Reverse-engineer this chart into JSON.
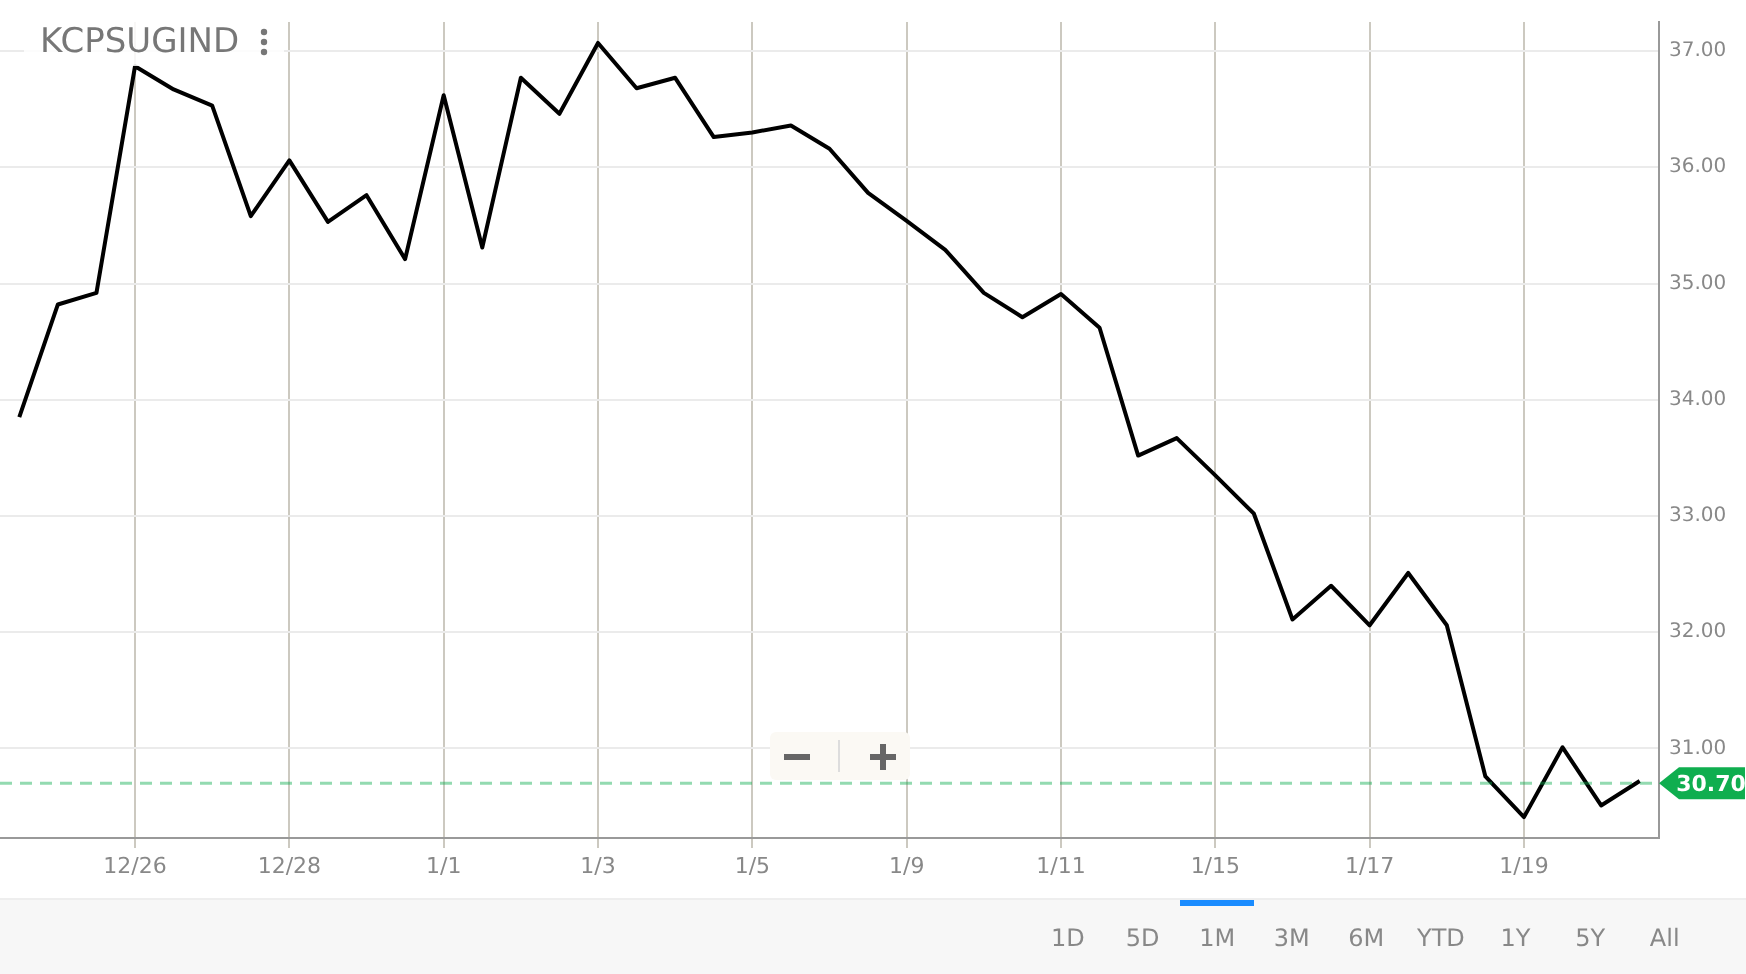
{
  "chart_data": {
    "type": "line",
    "title": "KCPSUGIND",
    "categories": [
      null,
      null,
      null,
      "12/26",
      null,
      null,
      null,
      "12/28",
      null,
      null,
      null,
      "1/1",
      null,
      null,
      null,
      "1/3",
      null,
      null,
      null,
      "1/5",
      null,
      null,
      null,
      "1/9",
      null,
      null,
      null,
      "1/11",
      null,
      null,
      null,
      "1/15",
      null,
      null,
      null,
      "1/17",
      null,
      null,
      null,
      "1/19",
      null,
      null,
      null
    ],
    "series": [
      {
        "color": "#000000",
        "values": [
          33.85,
          34.82,
          34.92,
          36.87,
          36.67,
          36.53,
          35.58,
          36.06,
          35.53,
          35.76,
          35.21,
          36.62,
          35.31,
          36.77,
          36.46,
          37.07,
          36.68,
          36.77,
          36.26,
          36.3,
          36.36,
          36.16,
          35.78,
          35.54,
          35.29,
          34.92,
          34.71,
          34.91,
          34.62,
          33.52,
          33.67,
          33.35,
          33.02,
          32.11,
          32.4,
          32.06,
          32.51,
          32.06,
          30.76,
          30.41,
          31.01,
          30.51,
          30.72
        ]
      }
    ],
    "ylim": [
      30.23,
      37.25
    ],
    "yticks": [
      {
        "value": 31,
        "label": "31.00"
      },
      {
        "value": 32,
        "label": "32.00"
      },
      {
        "value": 33,
        "label": "33.00"
      },
      {
        "value": 34,
        "label": "34.00"
      },
      {
        "value": 35,
        "label": "35.00"
      },
      {
        "value": 36,
        "label": "36.00"
      },
      {
        "value": 37,
        "label": "37.00"
      }
    ],
    "ref_lines": [
      {
        "axis": "y",
        "value": 30.7,
        "label": "30.70",
        "color": "#0fae4f",
        "line_style": "dashed"
      }
    ],
    "annotations": [
      "1D",
      "5D",
      "1M",
      "3M",
      "6M",
      "YTD",
      "1Y",
      "5Y",
      "All"
    ],
    "grid": true,
    "legend": false,
    "marker": "none",
    "line_style": "solid"
  }
}
